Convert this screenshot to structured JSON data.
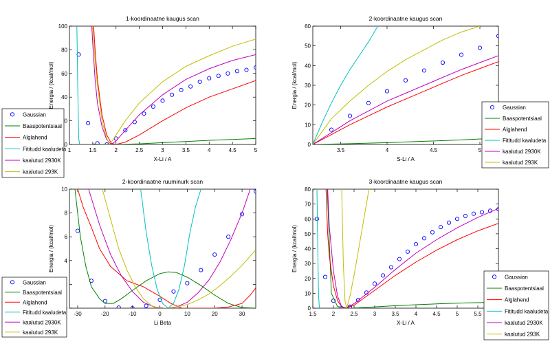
{
  "chart_data": [
    {
      "type": "line",
      "title": "1-koordinaatne kaugus scan",
      "xlabel": "X-Li / A",
      "ylabel": "Energia / (kcal/mol)",
      "xlim": [
        1,
        5
      ],
      "ylim": [
        0,
        100
      ],
      "xticks": [
        1,
        1.5,
        2,
        2.5,
        3,
        3.5,
        4,
        4.5,
        5
      ],
      "yticks": [
        0,
        20,
        40,
        60,
        80,
        100
      ],
      "legend_position": "outside-left",
      "series": [
        {
          "name": "Gaussian",
          "style": "markers",
          "color": "#0000ff",
          "x": [
            1.2,
            1.4,
            1.6,
            1.8,
            2.0,
            2.2,
            2.4,
            2.6,
            2.8,
            3.0,
            3.2,
            3.4,
            3.6,
            3.8,
            4.0,
            4.2,
            4.4,
            4.6,
            4.8,
            5.0
          ],
          "y": [
            76,
            18,
            1,
            0,
            5,
            12,
            19,
            26,
            32,
            37,
            42,
            46,
            49,
            53,
            56,
            58,
            60,
            62,
            63,
            65
          ]
        },
        {
          "name": "Baaspotentsiaal",
          "color": "#008000",
          "x": [
            1.5,
            1.6,
            1.8,
            2.0,
            2.5,
            3.0,
            3.5,
            4.0,
            4.5,
            5.0
          ],
          "y": [
            0.5,
            0.2,
            0,
            0,
            0.5,
            1.5,
            2.5,
            3.5,
            4.2,
            5
          ]
        },
        {
          "name": "Alglahend",
          "color": "#ff0000",
          "x": [
            1.52,
            1.55,
            1.6,
            1.7,
            1.8,
            1.9,
            2.0,
            2.2,
            2.5,
            3.0,
            3.5,
            4.0,
            4.5,
            5.0
          ],
          "y": [
            100,
            80,
            55,
            25,
            8,
            1,
            0,
            2,
            8,
            20,
            31,
            40,
            47,
            54
          ]
        },
        {
          "name": "Fititudd kaaludeta",
          "color": "#00bfbf",
          "x": [
            1.16,
            1.18,
            1.2,
            1.22
          ],
          "y": [
            100,
            45,
            5,
            0
          ]
        },
        {
          "name": "kaalutud 2930K",
          "color": "#bf00bf",
          "x": [
            1.48,
            1.5,
            1.55,
            1.6,
            1.7,
            1.8,
            1.9,
            2.0,
            2.2,
            2.5,
            3.0,
            3.5,
            4.0,
            4.5,
            5.0
          ],
          "y": [
            100,
            85,
            55,
            35,
            15,
            4,
            0,
            3,
            12,
            25,
            42,
            55,
            64,
            71,
            76
          ]
        },
        {
          "name": "kaalutud 293K",
          "color": "#bfbf00",
          "x": [
            1.5,
            1.55,
            1.6,
            1.7,
            1.8,
            1.85,
            1.9,
            2.0,
            2.2,
            2.5,
            3.0,
            3.5,
            4.0,
            4.5,
            5.0
          ],
          "y": [
            100,
            70,
            50,
            20,
            5,
            1,
            2,
            8,
            20,
            35,
            53,
            66,
            75,
            83,
            89
          ]
        }
      ]
    },
    {
      "type": "line",
      "title": "2-koordinaatne kaugus scan",
      "xlabel": "S-Li / A",
      "ylabel": "Energia / (kcal/mol)",
      "xlim": [
        3.2,
        5.2
      ],
      "ylim": [
        0,
        60
      ],
      "xticks": [
        3.5,
        4,
        4.5,
        5
      ],
      "yticks": [
        0,
        10,
        20,
        30,
        40,
        50,
        60
      ],
      "legend_position": "bottom-right",
      "series": [
        {
          "name": "Gaussian",
          "style": "markers",
          "color": "#0000ff",
          "x": [
            3.2,
            3.4,
            3.6,
            3.8,
            4.0,
            4.2,
            4.4,
            4.6,
            4.8,
            5.0,
            5.2
          ],
          "y": [
            0,
            7.5,
            14.5,
            21,
            27,
            32.5,
            37.5,
            41.5,
            45.5,
            49,
            55
          ]
        },
        {
          "name": "Baaspotentsiaal",
          "color": "#008000",
          "x": [
            3.2,
            3.6,
            4.0,
            4.4,
            4.8,
            5.2
          ],
          "y": [
            0,
            0.4,
            0.9,
            1.6,
            2.3,
            3.2
          ]
        },
        {
          "name": "Alglahend",
          "color": "#ff0000",
          "x": [
            3.2,
            3.4,
            3.6,
            3.8,
            4.0,
            4.2,
            4.4,
            4.6,
            4.8,
            5.0,
            5.2
          ],
          "y": [
            0,
            5,
            10,
            14.5,
            19,
            23,
            27,
            31,
            35,
            38.5,
            42
          ]
        },
        {
          "name": "Fititudd kaaludeta",
          "color": "#00bfbf",
          "x": [
            3.2,
            3.3,
            3.4,
            3.5,
            3.6,
            3.7,
            3.8,
            3.9
          ],
          "y": [
            0,
            11,
            21,
            30,
            38,
            45,
            52,
            60
          ]
        },
        {
          "name": "kaalutud 2930K",
          "color": "#bf00bf",
          "x": [
            3.2,
            3.4,
            3.6,
            3.8,
            4.0,
            4.2,
            4.4,
            4.6,
            4.8,
            5.0,
            5.2
          ],
          "y": [
            0,
            6,
            12,
            17,
            22,
            26,
            30,
            34,
            38,
            41.5,
            45
          ]
        },
        {
          "name": "kaalutud 293K",
          "color": "#bfbf00",
          "x": [
            3.2,
            3.4,
            3.6,
            3.8,
            4.0,
            4.2,
            4.4,
            4.6,
            4.8,
            5.0
          ],
          "y": [
            0,
            13,
            22,
            30,
            37,
            43,
            48,
            53,
            57,
            60
          ]
        }
      ]
    },
    {
      "type": "line",
      "title": "2-koordinaatne ruuminurk scan",
      "xlabel": "Li Beta",
      "ylabel": "Energia / (kcal/mol)",
      "xlim": [
        -33,
        35
      ],
      "ylim": [
        0,
        10
      ],
      "xticks": [
        -30,
        -20,
        -10,
        0,
        10,
        20,
        30
      ],
      "yticks": [
        0,
        2,
        4,
        6,
        8,
        10
      ],
      "legend_position": "outside-left",
      "series": [
        {
          "name": "Gaussian",
          "style": "markers",
          "color": "#0000ff",
          "x": [
            -30,
            -25,
            -20,
            -15,
            -10,
            -5,
            0,
            5,
            10,
            15,
            20,
            25,
            30,
            35
          ],
          "y": [
            6.5,
            2.3,
            0.6,
            0.05,
            0,
            0.2,
            0.7,
            1.4,
            2.1,
            3.2,
            4.5,
            6.0,
            7.9,
            9.8
          ]
        },
        {
          "name": "Baaspotentsiaal",
          "color": "#008000",
          "x": [
            -31,
            -29,
            -27,
            -25,
            -22,
            -20,
            -17,
            -14,
            -10,
            -5,
            0,
            3,
            6,
            10,
            15,
            20,
            25,
            30,
            35
          ],
          "y": [
            10,
            6,
            3.5,
            1.8,
            0.8,
            0.4,
            0.4,
            0.8,
            1.5,
            2.3,
            2.9,
            3.05,
            3.0,
            2.6,
            1.9,
            1.1,
            0.4,
            0.05,
            0
          ]
        },
        {
          "name": "Alglahend",
          "color": "#ff0000",
          "x": [
            -30,
            -28,
            -25,
            -22,
            -18,
            -12,
            -6,
            0,
            4,
            8,
            14,
            20,
            25,
            30,
            33,
            35
          ],
          "y": [
            10,
            8.5,
            6.8,
            5.0,
            3.5,
            2.3,
            1.8,
            1.0,
            0.4,
            0,
            0,
            0,
            0.1,
            0.4,
            1.1,
            1.7
          ]
        },
        {
          "name": "Fititudd kaaludeta",
          "color": "#00bfbf",
          "x": [
            -7,
            -5,
            -3,
            -1,
            1,
            3,
            5,
            7,
            9,
            11,
            13,
            15
          ],
          "y": [
            10,
            6.4,
            3.6,
            1.6,
            0.4,
            0,
            0.4,
            1.6,
            3.6,
            6.4,
            8.5,
            10
          ]
        },
        {
          "name": "kaalutud 2930K",
          "color": "#bf00bf",
          "x": [
            -26,
            -22,
            -18,
            -14,
            -10,
            -6,
            -2,
            2,
            6,
            10,
            14,
            18,
            22,
            26,
            30,
            33
          ],
          "y": [
            10,
            7.0,
            4.5,
            2.7,
            1.4,
            0.5,
            0.1,
            0,
            0.1,
            0.5,
            1.3,
            2.4,
            3.9,
            5.8,
            8.0,
            10
          ]
        },
        {
          "name": "kaalutud 293K",
          "color": "#bfbf00",
          "x": [
            -21,
            -18,
            -15,
            -12,
            -9,
            -6,
            -3,
            0,
            3,
            6,
            10,
            14,
            18,
            22,
            26,
            30,
            35
          ],
          "y": [
            10,
            7.5,
            5.0,
            3.2,
            1.8,
            0.8,
            0.2,
            0,
            0,
            0.1,
            0.3,
            0.7,
            1.2,
            1.9,
            2.7,
            3.6,
            4.9
          ]
        }
      ]
    },
    {
      "type": "line",
      "title": "3-koordinaatne kaugus scan",
      "xlabel": "X-Li / A",
      "ylabel": "Energia / (kcal/mol)",
      "xlim": [
        1.5,
        6
      ],
      "ylim": [
        0,
        80
      ],
      "xticks": [
        1.5,
        2,
        2.5,
        3,
        3.5,
        4,
        4.5,
        5,
        5.5
      ],
      "yticks": [
        0,
        10,
        20,
        30,
        40,
        50,
        60,
        70,
        80
      ],
      "legend_position": "bottom-right",
      "series": [
        {
          "name": "Gaussian",
          "style": "markers",
          "color": "#0000ff",
          "x": [
            1.6,
            1.8,
            2.0,
            2.2,
            2.4,
            2.6,
            2.8,
            3.0,
            3.2,
            3.4,
            3.6,
            3.8,
            4.0,
            4.2,
            4.4,
            4.6,
            4.8,
            5.0,
            5.2,
            5.4,
            5.6,
            5.8,
            6.0
          ],
          "y": [
            60,
            21,
            5,
            0,
            1,
            5.5,
            10.5,
            16.5,
            22,
            27.5,
            33,
            38,
            43,
            47,
            51,
            54.5,
            57.5,
            60,
            62,
            63.5,
            64.5,
            65.5,
            66.5
          ]
        },
        {
          "name": "Baaspotentsiaal",
          "color": "#008000",
          "x": [
            1.85,
            1.95,
            2.1,
            2.4,
            2.8,
            3.4,
            4.0,
            4.6,
            5.2,
            6.0
          ],
          "y": [
            80,
            10,
            1,
            0,
            0.5,
            1.5,
            2.3,
            3.0,
            3.5,
            4
          ]
        },
        {
          "name": "Alglahend",
          "color": "#ff0000",
          "x": [
            1.82,
            1.86,
            1.9,
            2.0,
            2.1,
            2.2,
            2.3,
            2.5,
            3.0,
            3.5,
            4.0,
            4.5,
            5.0,
            5.5,
            6.0
          ],
          "y": [
            80,
            50,
            35,
            15,
            5,
            1,
            0,
            2,
            12,
            22,
            31,
            39,
            46,
            52,
            57
          ]
        },
        {
          "name": "Fititudd kaaludeta",
          "color": "#00bfbf",
          "x": [
            1.6,
            1.62,
            1.64,
            1.66
          ],
          "y": [
            80,
            40,
            8,
            0
          ]
        },
        {
          "name": "kaalutud 2930K",
          "color": "#bf00bf",
          "x": [
            1.86,
            1.9,
            2.0,
            2.1,
            2.2,
            2.3,
            2.5,
            3.0,
            3.5,
            4.0,
            4.5,
            5.0,
            5.5,
            6.0
          ],
          "y": [
            80,
            55,
            25,
            8,
            1,
            0,
            3,
            14,
            26,
            37,
            46,
            54,
            61,
            67
          ]
        },
        {
          "name": "kaalutud 293K",
          "color": "#bfbf00",
          "x": [
            2.2,
            2.24,
            2.28,
            2.32,
            2.4,
            2.5,
            2.6,
            2.7,
            2.8,
            2.86
          ],
          "y": [
            80,
            30,
            5,
            0,
            8,
            22,
            38,
            54,
            70,
            80
          ]
        }
      ]
    }
  ]
}
